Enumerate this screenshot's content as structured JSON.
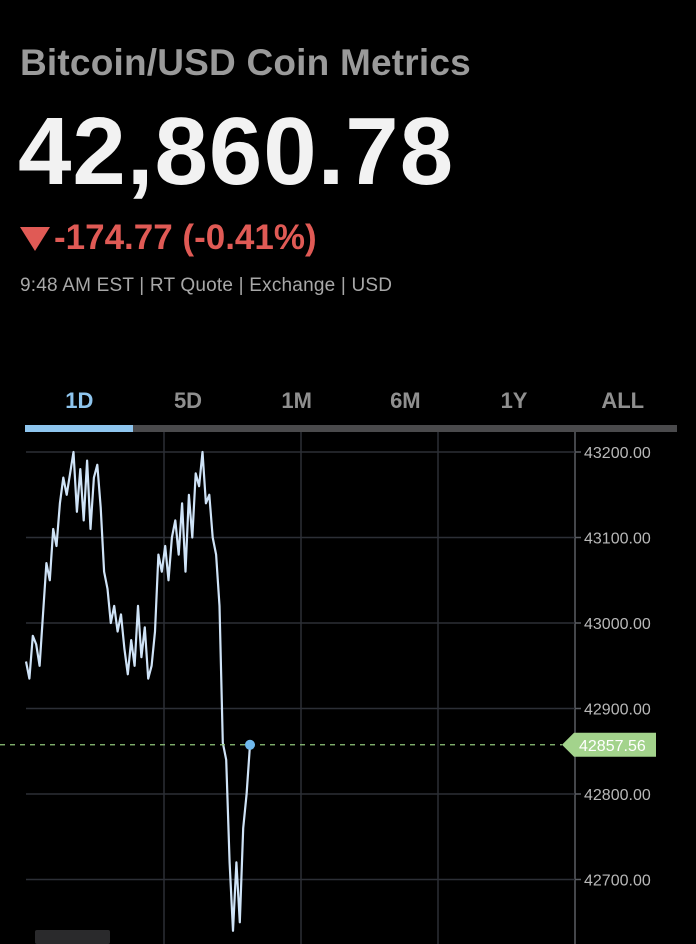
{
  "header": {
    "title": "Bitcoin/USD Coin Metrics",
    "price": "42,860.78",
    "change": "-174.77 (-0.41%)",
    "meta": "9:48 AM EST | RT Quote | Exchange | USD"
  },
  "tabs": [
    {
      "label": "1D",
      "active": true
    },
    {
      "label": "5D",
      "active": false
    },
    {
      "label": "1M",
      "active": false
    },
    {
      "label": "6M",
      "active": false
    },
    {
      "label": "1Y",
      "active": false
    },
    {
      "label": "ALL",
      "active": false
    }
  ],
  "colors": {
    "accent": "#8ec5ee",
    "negative": "#e05a55",
    "line": "#cfe3f7",
    "current_dot": "#6fb8ec",
    "current_tag": "#a3d38c",
    "ref_line": "#8fc47a"
  },
  "chart_data": {
    "type": "line",
    "title": "",
    "xlabel": "",
    "ylabel": "",
    "ylim": [
      42640,
      43218
    ],
    "y_ticks": [
      "43200.00",
      "43100.00",
      "43000.00",
      "42900.00",
      "42800.00",
      "42700.00"
    ],
    "y_tick_values": [
      43200,
      43100,
      43000,
      42900,
      42800,
      42700
    ],
    "grid": true,
    "current_value": 42857.56,
    "current_label": "42857.56",
    "series": [
      {
        "values": [
          42955,
          42935,
          42985,
          42975,
          42950,
          43010,
          43070,
          43050,
          43110,
          43090,
          43140,
          43170,
          43150,
          43175,
          43200,
          43130,
          43180,
          43120,
          43190,
          43110,
          43170,
          43185,
          43135,
          43060,
          43040,
          43000,
          43020,
          42990,
          43010,
          42970,
          42940,
          42980,
          42950,
          43020,
          42960,
          42995,
          42935,
          42950,
          42990,
          43080,
          43060,
          43090,
          43050,
          43100,
          43120,
          43080,
          43140,
          43060,
          43150,
          43100,
          43175,
          43160,
          43200,
          43140,
          43150,
          43100,
          43080,
          43020,
          42860,
          42840,
          42720,
          42640,
          42720,
          42650,
          42760,
          42800,
          42857.56
        ]
      }
    ]
  }
}
